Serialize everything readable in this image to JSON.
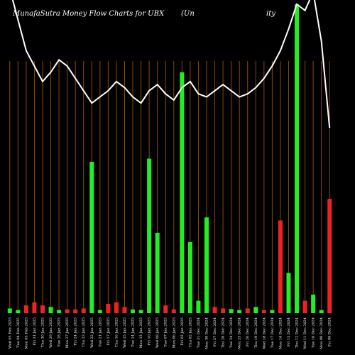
{
  "chart_data": {
    "type": "bar",
    "title": "MunafaSutra  Money Flow  Charts for UBX",
    "title_fragments": [
      "(Un",
      "ity"
    ],
    "colors": {
      "background": "#000000",
      "grid": "#8B4A0B",
      "up": "#22EE22",
      "down": "#EE2222",
      "line": "#FFFFFF"
    },
    "ylim": [
      0,
      100
    ],
    "categories": [
      "Wed 05 Feb 2025",
      "Tue 04 Feb 2025",
      "Mon 03 Feb 2025",
      "Fri 31 Jan 2025",
      "Thu 30 Jan 2025",
      "Wed 29 Jan 2025",
      "Tue 28 Jan 2025",
      "Mon 27 Jan 2025",
      "Fri 24 Jan 2025",
      "Thu 23 Jan 2025",
      "Wed 22 Jan 2025",
      "Tue 21 Jan 2025",
      "Fri 17 Jan 2025",
      "Thu 16 Jan 2025",
      "Wed 15 Jan 2025",
      "Tue 14 Jan 2025",
      "Mon 13 Jan 2025",
      "Fri 10 Jan 2025",
      "Wed 08 Jan 2025",
      "Tue 07 Jan 2025",
      "Mon 06 Jan 2025",
      "Fri 03 Jan 2025",
      "Thu 02 Jan 2025",
      "Tue 31 Dec 2024",
      "Mon 30 Dec 2024",
      "Fri 27 Dec 2024",
      "Thu 26 Dec 2024",
      "Tue 24 Dec 2024",
      "Mon 23 Dec 2024",
      "Fri 20 Dec 2024",
      "Thu 19 Dec 2024",
      "Wed 18 Dec 2024",
      "Tue 17 Dec 2024",
      "Mon 16 Dec 2024",
      "Fri 13 Dec 2024",
      "Thu 12 Dec 2024",
      "Wed 11 Dec 2024",
      "Tue 10 Dec 2024",
      "Mon 09 Dec 2024",
      "Fri 06 Dec 2024"
    ],
    "values": [
      1.5,
      1,
      2.5,
      3.5,
      2.5,
      2,
      1,
      1.2,
      1.2,
      1.5,
      49,
      1,
      3,
      3.5,
      2,
      1.2,
      1,
      50,
      26,
      2.5,
      1.2,
      78,
      23,
      4,
      31,
      2,
      1.5,
      1.3,
      1,
      1.5,
      2,
      1,
      1,
      30,
      13,
      100,
      4,
      6,
      1,
      37
    ],
    "directions": [
      "up",
      "up",
      "down",
      "down",
      "down",
      "up",
      "up",
      "down",
      "down",
      "down",
      "up",
      "up",
      "down",
      "down",
      "down",
      "up",
      "up",
      "up",
      "up",
      "down",
      "down",
      "up",
      "up",
      "up",
      "up",
      "down",
      "down",
      "up",
      "up",
      "down",
      "up",
      "down",
      "up",
      "down",
      "up",
      "up",
      "down",
      "up",
      "up",
      "down"
    ],
    "line_values": [
      105,
      95,
      85,
      80,
      75,
      78,
      82,
      80,
      76,
      72,
      68,
      70,
      72,
      75,
      73,
      70,
      68,
      72,
      74,
      71,
      69,
      73,
      75,
      71,
      70,
      72,
      74,
      72,
      70,
      71,
      73,
      76,
      80,
      85,
      92,
      100,
      98,
      104,
      88,
      60
    ]
  }
}
